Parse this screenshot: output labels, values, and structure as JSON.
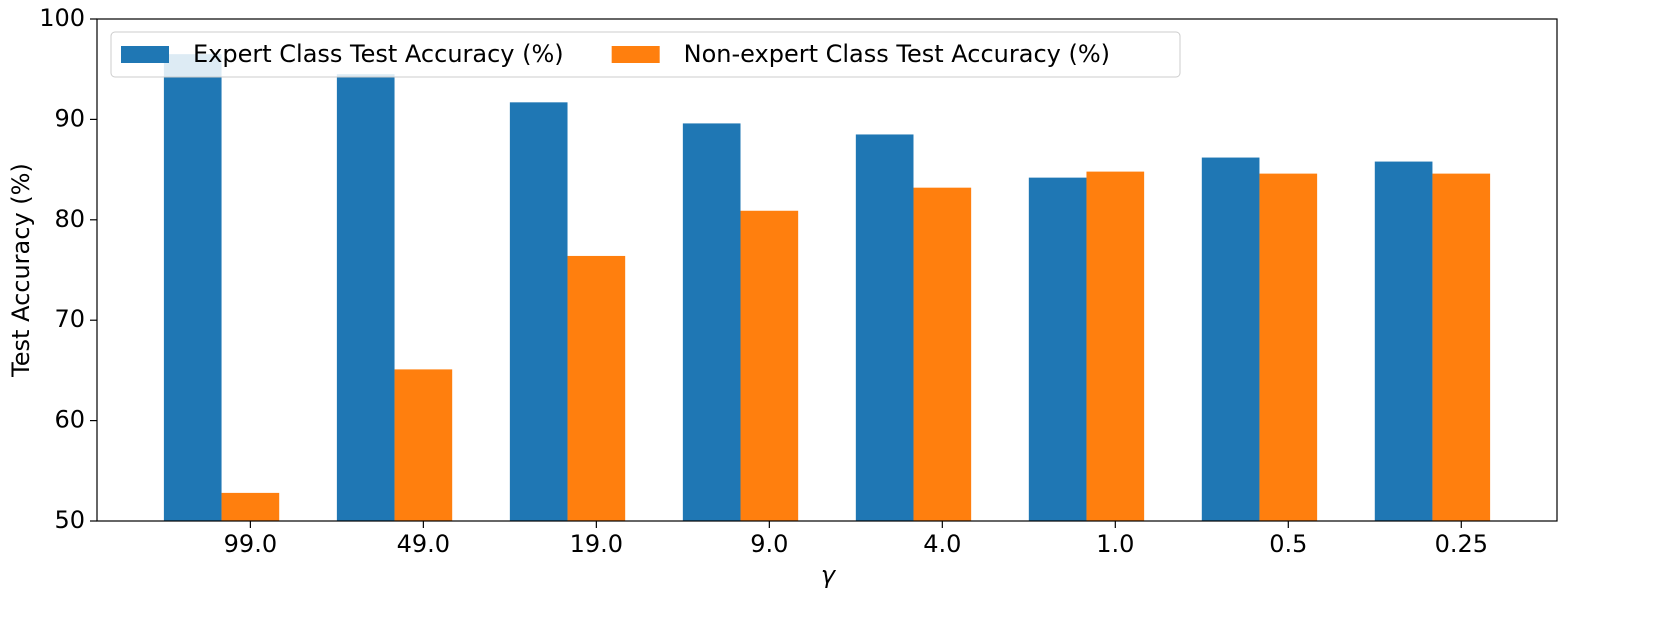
{
  "chart_data": {
    "type": "bar",
    "x_label": "γ",
    "y_label": "Test Accuracy (%)",
    "categories": [
      "99.0",
      "49.0",
      "19.0",
      "9.0",
      "4.0",
      "1.0",
      "0.5",
      "0.25"
    ],
    "series": [
      {
        "name": "Expert Class Test Accuracy (%)",
        "color": "#1f77b4",
        "values": [
          96.5,
          94.5,
          91.7,
          89.6,
          88.5,
          84.2,
          86.2,
          85.8
        ]
      },
      {
        "name": "Non-expert Class Test Accuracy (%)",
        "color": "#ff7f0e",
        "values": [
          52.8,
          65.1,
          76.4,
          80.9,
          83.2,
          84.8,
          84.6,
          84.6
        ]
      }
    ],
    "ylim": [
      50,
      100
    ],
    "yticks": [
      50,
      60,
      70,
      80,
      90,
      100
    ],
    "grid": false,
    "legend": "upper left"
  }
}
